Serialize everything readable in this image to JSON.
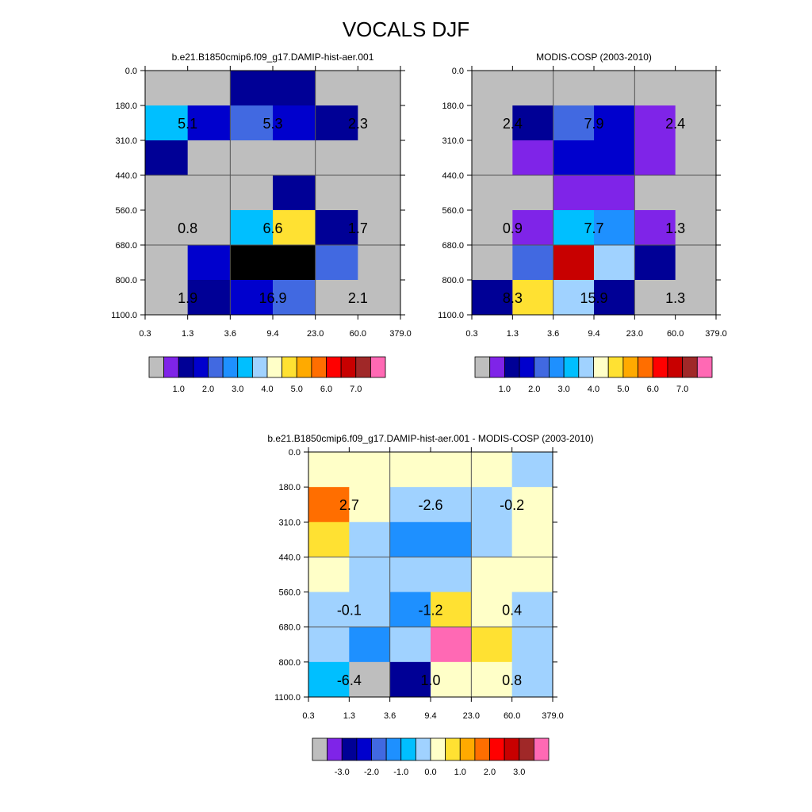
{
  "page": {
    "title": "VOCALS DJF"
  },
  "chart_data": [
    {
      "type": "heatmap",
      "title": "b.e21.B1850cmip6.f09_g17.DAMIP-hist-aer.001",
      "x_ticks": [
        "0.3",
        "1.3",
        "3.6",
        "9.4",
        "23.0",
        "60.0",
        "379.0"
      ],
      "y_ticks": [
        "0.0",
        "180.0",
        "310.0",
        "440.0",
        "560.0",
        "680.0",
        "800.0",
        "1100.0"
      ],
      "cells": [
        [
          0,
          0,
          2,
          2,
          0,
          0
        ],
        [
          6,
          3,
          4,
          3,
          2,
          0
        ],
        [
          2,
          0,
          0,
          0,
          0,
          0
        ],
        [
          0,
          0,
          0,
          2,
          0,
          0
        ],
        [
          0,
          0,
          6,
          9,
          2,
          0
        ],
        [
          0,
          3,
          17,
          18,
          4,
          0
        ],
        [
          0,
          2,
          3,
          4,
          0,
          0
        ]
      ],
      "annotations": [
        {
          "row": 1,
          "col": 0,
          "text": "5.1"
        },
        {
          "row": 1,
          "col": 1,
          "text": "5.3"
        },
        {
          "row": 1,
          "col": 2,
          "text": "2.3"
        },
        {
          "row": 4,
          "col": 0,
          "text": "0.8"
        },
        {
          "row": 4,
          "col": 1,
          "text": "6.6"
        },
        {
          "row": 4,
          "col": 2,
          "text": "1.7"
        },
        {
          "row": 6,
          "col": 0,
          "text": "1.9"
        },
        {
          "row": 6,
          "col": 1,
          "text": "16.9"
        },
        {
          "row": 6,
          "col": 2,
          "text": "2.1"
        }
      ],
      "colorbar": {
        "colors": [
          "#bebebe",
          "#7f24e8",
          "#000096",
          "#0000cd",
          "#4169e1",
          "#1e90ff",
          "#00bfff",
          "#a0d2ff",
          "#ffffc8",
          "#ffe132",
          "#ffaa00",
          "#ff6e00",
          "#ff0000",
          "#c80000",
          "#a02828",
          "#ff69b4"
        ],
        "labels": [
          "1.0",
          "2.0",
          "3.0",
          "4.0",
          "5.0",
          "6.0",
          "7.0"
        ]
      }
    },
    {
      "type": "heatmap",
      "title": "MODIS-COSP (2003-2010)",
      "x_ticks": [
        "0.3",
        "1.3",
        "3.6",
        "9.4",
        "23.0",
        "60.0",
        "379.0"
      ],
      "y_ticks": [
        "0.0",
        "180.0",
        "310.0",
        "440.0",
        "560.0",
        "680.0",
        "800.0",
        "1100.0"
      ],
      "cells": [
        [
          0,
          0,
          0,
          0,
          0,
          0
        ],
        [
          0,
          2,
          4,
          3,
          1,
          0
        ],
        [
          0,
          1,
          3,
          3,
          1,
          0
        ],
        [
          0,
          0,
          1,
          1,
          0,
          0
        ],
        [
          0,
          1,
          6,
          5,
          1,
          0
        ],
        [
          0,
          4,
          13,
          7,
          2,
          0
        ],
        [
          2,
          9,
          7,
          2,
          0,
          0
        ]
      ],
      "annotations": [
        {
          "row": 1,
          "col": 0,
          "text": "2.4"
        },
        {
          "row": 1,
          "col": 1,
          "text": "7.9"
        },
        {
          "row": 1,
          "col": 2,
          "text": "2.4"
        },
        {
          "row": 4,
          "col": 0,
          "text": "0.9"
        },
        {
          "row": 4,
          "col": 1,
          "text": "7.7"
        },
        {
          "row": 4,
          "col": 2,
          "text": "1.3"
        },
        {
          "row": 6,
          "col": 0,
          "text": "8.3"
        },
        {
          "row": 6,
          "col": 1,
          "text": "15.9"
        },
        {
          "row": 6,
          "col": 2,
          "text": "1.3"
        }
      ],
      "colorbar": {
        "colors": [
          "#bebebe",
          "#7f24e8",
          "#000096",
          "#0000cd",
          "#4169e1",
          "#1e90ff",
          "#00bfff",
          "#a0d2ff",
          "#ffffc8",
          "#ffe132",
          "#ffaa00",
          "#ff6e00",
          "#ff0000",
          "#c80000",
          "#a02828",
          "#ff69b4"
        ],
        "labels": [
          "1.0",
          "2.0",
          "3.0",
          "4.0",
          "5.0",
          "6.0",
          "7.0"
        ]
      }
    },
    {
      "type": "heatmap",
      "title": "b.e21.B1850cmip6.f09_g17.DAMIP-hist-aer.001 - MODIS-COSP (2003-2010)",
      "x_ticks": [
        "0.3",
        "1.3",
        "3.6",
        "9.4",
        "23.0",
        "60.0",
        "379.0"
      ],
      "y_ticks": [
        "0.0",
        "180.0",
        "310.0",
        "440.0",
        "560.0",
        "680.0",
        "800.0",
        "1100.0"
      ],
      "cells": [
        [
          8,
          8,
          8,
          8,
          8,
          7
        ],
        [
          11,
          8,
          7,
          7,
          7,
          8
        ],
        [
          9,
          7,
          5,
          5,
          7,
          8
        ],
        [
          8,
          7,
          7,
          7,
          8,
          8
        ],
        [
          7,
          7,
          5,
          9,
          8,
          7
        ],
        [
          7,
          5,
          7,
          15,
          9,
          7
        ],
        [
          6,
          0,
          2,
          8,
          8,
          7
        ]
      ],
      "annotations": [
        {
          "row": 1,
          "col": 0,
          "text": "2.7"
        },
        {
          "row": 1,
          "col": 1,
          "text": "-2.6"
        },
        {
          "row": 1,
          "col": 2,
          "text": "-0.2"
        },
        {
          "row": 4,
          "col": 0,
          "text": "-0.1"
        },
        {
          "row": 4,
          "col": 1,
          "text": "-1.2"
        },
        {
          "row": 4,
          "col": 2,
          "text": "0.4"
        },
        {
          "row": 6,
          "col": 0,
          "text": "-6.4"
        },
        {
          "row": 6,
          "col": 1,
          "text": "1.0"
        },
        {
          "row": 6,
          "col": 2,
          "text": "0.8"
        }
      ],
      "colorbar": {
        "colors": [
          "#bebebe",
          "#7f24e8",
          "#000096",
          "#0000cd",
          "#4169e1",
          "#1e90ff",
          "#00bfff",
          "#a0d2ff",
          "#ffffc8",
          "#ffe132",
          "#ffaa00",
          "#ff6e00",
          "#ff0000",
          "#c80000",
          "#a02828",
          "#ff69b4"
        ],
        "labels": [
          "-3.0",
          "-2.0",
          "-1.0",
          "0.0",
          "1.0",
          "2.0",
          "3.0"
        ]
      }
    }
  ]
}
